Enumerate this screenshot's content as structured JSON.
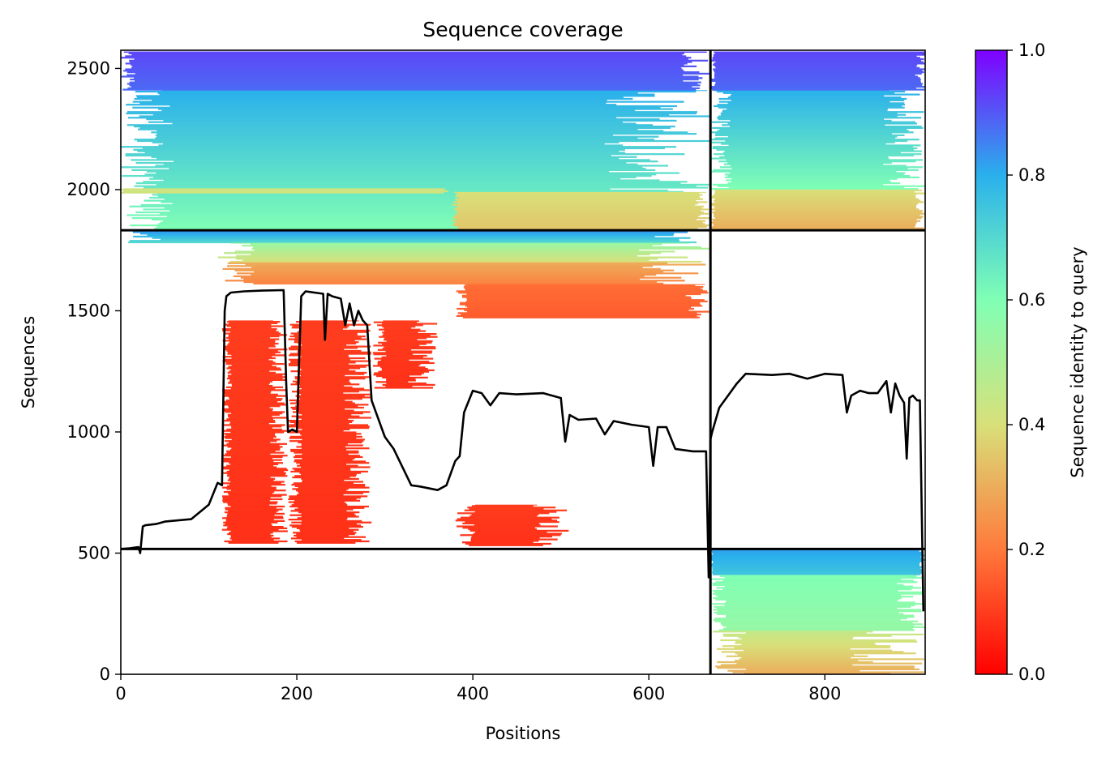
{
  "chart_data": {
    "type": "heatmap",
    "title": "Sequence coverage",
    "xlabel": "Positions",
    "ylabel": "Sequences",
    "xlim": [
      0,
      914
    ],
    "ylim": [
      0,
      2575
    ],
    "xticks": [
      0,
      200,
      400,
      600,
      800
    ],
    "yticks": [
      0,
      500,
      1000,
      1500,
      2000,
      2500
    ],
    "colorbar": {
      "label": "Sequence identity to query",
      "range": [
        0,
        1
      ],
      "ticks": [
        "0.0",
        "0.2",
        "0.4",
        "0.6",
        "0.8",
        "1.0"
      ],
      "colormap": "rainbow_r",
      "stops": [
        "#ff0000",
        "#ff7a3c",
        "#d8e07a",
        "#80ffb4",
        "#2ab0ec",
        "#7f00ff"
      ]
    },
    "chain_boundaries": {
      "x": 670,
      "y": [
        517,
        1832
      ]
    },
    "blocks": [
      {
        "x0": 0,
        "x1": 670,
        "y0": 1832,
        "y1": 2410,
        "id_top": 0.8,
        "id_bottom": 0.6,
        "ragged": 0.18
      },
      {
        "x0": 0,
        "x1": 670,
        "y0": 2410,
        "y1": 2570,
        "id_top": 0.92,
        "id_bottom": 0.88,
        "ragged": 0.05
      },
      {
        "x0": 0,
        "x1": 374,
        "y0": 1985,
        "y1": 2005,
        "id_top": 0.42,
        "id_bottom": 0.42,
        "ragged": 0.02
      },
      {
        "x0": 376,
        "x1": 670,
        "y0": 1832,
        "y1": 1990,
        "id_top": 0.4,
        "id_bottom": 0.35,
        "ragged": 0.06
      },
      {
        "x0": 670,
        "x1": 914,
        "y0": 2000,
        "y1": 2410,
        "id_top": 0.8,
        "id_bottom": 0.6,
        "ragged": 0.2
      },
      {
        "x0": 670,
        "x1": 914,
        "y0": 2410,
        "y1": 2570,
        "id_top": 0.92,
        "id_bottom": 0.88,
        "ragged": 0.05
      },
      {
        "x0": 670,
        "x1": 914,
        "y0": 1832,
        "y1": 2000,
        "id_top": 0.4,
        "id_bottom": 0.3,
        "ragged": 0.05
      },
      {
        "x0": 0,
        "x1": 670,
        "y0": 1780,
        "y1": 1832,
        "id_top": 0.85,
        "id_bottom": 0.7,
        "ragged": 0.15
      },
      {
        "x0": 110,
        "x1": 670,
        "y0": 1700,
        "y1": 1780,
        "id_top": 0.55,
        "id_bottom": 0.4,
        "ragged": 0.15
      },
      {
        "x0": 110,
        "x1": 670,
        "y0": 1610,
        "y1": 1700,
        "id_top": 0.3,
        "id_bottom": 0.22,
        "ragged": 0.15
      },
      {
        "x0": 380,
        "x1": 670,
        "y0": 1470,
        "y1": 1610,
        "id_top": 0.18,
        "id_bottom": 0.15,
        "ragged": 0.1
      },
      {
        "x0": 115,
        "x1": 190,
        "y0": 540,
        "y1": 1460,
        "id_top": 0.1,
        "id_bottom": 0.08,
        "ragged": 0.3
      },
      {
        "x0": 190,
        "x1": 285,
        "y0": 540,
        "y1": 1460,
        "id_top": 0.1,
        "id_bottom": 0.08,
        "ragged": 0.35
      },
      {
        "x0": 285,
        "x1": 360,
        "y0": 1180,
        "y1": 1460,
        "id_top": 0.1,
        "id_bottom": 0.08,
        "ragged": 0.45
      },
      {
        "x0": 380,
        "x1": 510,
        "y0": 530,
        "y1": 700,
        "id_top": 0.1,
        "id_bottom": 0.08,
        "ragged": 0.35
      },
      {
        "x0": 670,
        "x1": 914,
        "y0": 410,
        "y1": 517,
        "id_top": 0.82,
        "id_bottom": 0.75,
        "ragged": 0.03
      },
      {
        "x0": 670,
        "x1": 914,
        "y0": 180,
        "y1": 410,
        "id_top": 0.6,
        "id_bottom": 0.55,
        "ragged": 0.15
      },
      {
        "x0": 670,
        "x1": 914,
        "y0": 0,
        "y1": 180,
        "id_top": 0.45,
        "id_bottom": 0.3,
        "ragged": 0.35
      }
    ],
    "coverage_line": {
      "x": [
        0,
        10,
        20,
        22,
        25,
        28,
        40,
        50,
        80,
        100,
        110,
        115,
        118,
        120,
        125,
        140,
        160,
        185,
        188,
        190,
        195,
        200,
        205,
        210,
        230,
        232,
        235,
        240,
        250,
        255,
        260,
        265,
        270,
        275,
        280,
        285,
        300,
        310,
        330,
        340,
        360,
        370,
        380,
        385,
        390,
        400,
        410,
        420,
        430,
        450,
        480,
        500,
        505,
        510,
        520,
        540,
        550,
        560,
        580,
        600,
        605,
        610,
        620,
        630,
        650,
        665,
        668,
        670,
        672,
        680,
        690,
        700,
        710,
        740,
        760,
        780,
        800,
        820,
        825,
        830,
        840,
        850,
        860,
        870,
        875,
        880,
        885,
        890,
        893,
        896,
        900,
        905,
        908,
        912
      ],
      "y": [
        517,
        520,
        525,
        500,
        610,
        615,
        620,
        630,
        640,
        700,
        790,
        780,
        1500,
        1560,
        1575,
        1580,
        1583,
        1585,
        1200,
        1000,
        1010,
        1000,
        1560,
        1580,
        1570,
        1380,
        1570,
        1560,
        1550,
        1440,
        1530,
        1440,
        1500,
        1460,
        1440,
        1130,
        980,
        930,
        780,
        775,
        760,
        780,
        880,
        900,
        1080,
        1170,
        1160,
        1110,
        1160,
        1155,
        1160,
        1140,
        960,
        1070,
        1050,
        1055,
        990,
        1045,
        1030,
        1020,
        860,
        1020,
        1020,
        930,
        920,
        920,
        400,
        970,
        1000,
        1100,
        1150,
        1200,
        1240,
        1235,
        1240,
        1220,
        1240,
        1235,
        1080,
        1150,
        1170,
        1160,
        1160,
        1210,
        1080,
        1200,
        1150,
        1120,
        890,
        1140,
        1150,
        1130,
        1130,
        260
      ]
    }
  }
}
